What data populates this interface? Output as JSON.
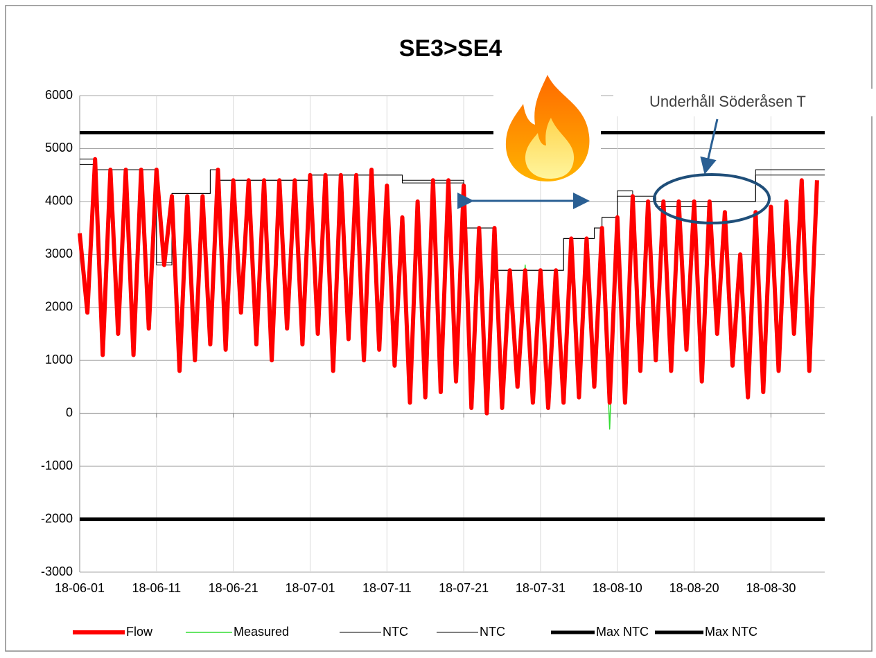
{
  "chart_data": {
    "type": "line",
    "title": "SE3>SE4",
    "annotation": "Underhåll Söderåsen T",
    "x": [
      "18-06-01",
      "18-06-02",
      "18-06-03",
      "18-06-04",
      "18-06-05",
      "18-06-06",
      "18-06-07",
      "18-06-08",
      "18-06-09",
      "18-06-10",
      "18-06-11",
      "18-06-12",
      "18-06-13",
      "18-06-14",
      "18-06-15",
      "18-06-16",
      "18-06-17",
      "18-06-18",
      "18-06-19",
      "18-06-20",
      "18-06-21",
      "18-06-22",
      "18-06-23",
      "18-06-24",
      "18-06-25",
      "18-06-26",
      "18-06-27",
      "18-06-28",
      "18-06-29",
      "18-06-30",
      "18-07-01",
      "18-07-02",
      "18-07-03",
      "18-07-04",
      "18-07-05",
      "18-07-06",
      "18-07-07",
      "18-07-08",
      "18-07-09",
      "18-07-10",
      "18-07-11",
      "18-07-12",
      "18-07-13",
      "18-07-14",
      "18-07-15",
      "18-07-16",
      "18-07-17",
      "18-07-18",
      "18-07-19",
      "18-07-20",
      "18-07-21",
      "18-07-22",
      "18-07-23",
      "18-07-24",
      "18-07-25",
      "18-07-26",
      "18-07-27",
      "18-07-28",
      "18-07-29",
      "18-07-30",
      "18-07-31",
      "18-08-01",
      "18-08-02",
      "18-08-03",
      "18-08-04",
      "18-08-05",
      "18-08-06",
      "18-08-07",
      "18-08-08",
      "18-08-09",
      "18-08-10",
      "18-08-11",
      "18-08-12",
      "18-08-13",
      "18-08-14",
      "18-08-15",
      "18-08-16",
      "18-08-17",
      "18-08-18",
      "18-08-19",
      "18-08-20",
      "18-08-21",
      "18-08-22",
      "18-08-23",
      "18-08-24",
      "18-08-25",
      "18-08-26",
      "18-08-27",
      "18-08-28",
      "18-08-29",
      "18-08-30",
      "18-08-31",
      "18-09-01",
      "18-09-02",
      "18-09-03",
      "18-09-04",
      "18-09-05"
    ],
    "series": [
      {
        "name": "Flow",
        "color": "#ff0000",
        "width": 6,
        "values": [
          3400,
          1900,
          4800,
          1100,
          4600,
          1500,
          4600,
          1100,
          4600,
          1600,
          4600,
          2800,
          4100,
          800,
          4100,
          1000,
          4100,
          1300,
          4600,
          1200,
          4400,
          1900,
          4400,
          1300,
          4400,
          1000,
          4400,
          1600,
          4400,
          1300,
          4500,
          1500,
          4500,
          800,
          4500,
          1400,
          4500,
          1000,
          4600,
          1200,
          4300,
          900,
          3700,
          200,
          4000,
          300,
          4400,
          400,
          4400,
          600,
          4300,
          100,
          3500,
          0,
          3500,
          100,
          2700,
          500,
          2700,
          200,
          2700,
          100,
          2700,
          200,
          3300,
          300,
          3300,
          500,
          3500,
          200,
          3700,
          200,
          4100,
          800,
          4000,
          1000,
          4000,
          800,
          4000,
          1200,
          4000,
          600,
          4000,
          1500,
          3800,
          900,
          3000,
          300,
          3800,
          400,
          3900,
          800,
          4000,
          1500,
          4400,
          800,
          4400
        ]
      },
      {
        "name": "Measured",
        "color": "#33dd33",
        "width": 1.5,
        "values": [
          3200,
          2100,
          4500,
          1300,
          4400,
          1700,
          4400,
          1300,
          4400,
          1800,
          4300,
          2900,
          3900,
          1000,
          3900,
          1200,
          3900,
          1500,
          4400,
          1400,
          4200,
          2000,
          4300,
          1500,
          4200,
          1200,
          4200,
          1800,
          4200,
          1500,
          4300,
          1600,
          4300,
          1000,
          4300,
          1500,
          4300,
          1200,
          4400,
          1400,
          4100,
          1000,
          3500,
          400,
          3800,
          500,
          4200,
          500,
          4200,
          800,
          4100,
          300,
          3300,
          200,
          3300,
          300,
          2600,
          600,
          2800,
          300,
          2600,
          200,
          2600,
          300,
          3100,
          500,
          3100,
          600,
          3300,
          -300,
          3500,
          400,
          3900,
          1000,
          3800,
          1100,
          3800,
          1000,
          3800,
          1300,
          3800,
          800,
          3800,
          1600,
          3600,
          1000,
          2900,
          400,
          3600,
          600,
          3700,
          900,
          3800,
          1600,
          4200,
          1000,
          4200
        ]
      },
      {
        "name": "NTC",
        "color": "#000000",
        "width": 1,
        "x": [
          "18-06-01",
          "18-06-03",
          "18-06-03",
          "18-06-11",
          "18-06-11",
          "18-06-13",
          "18-06-13",
          "18-06-18",
          "18-06-18",
          "18-06-19",
          "18-06-19",
          "18-07-01",
          "18-07-01",
          "18-07-13",
          "18-07-13",
          "18-07-21",
          "18-07-21",
          "18-07-25",
          "18-07-25",
          "18-08-03",
          "18-08-03",
          "18-08-07",
          "18-08-07",
          "18-08-08",
          "18-08-08",
          "18-08-10",
          "18-08-10",
          "18-08-12",
          "18-08-12",
          "18-08-28",
          "18-08-28",
          "18-09-06"
        ],
        "values": [
          4800,
          4800,
          4600,
          4600,
          2850,
          2850,
          4150,
          4150,
          4600,
          4600,
          4400,
          4400,
          4500,
          4500,
          4400,
          4400,
          3500,
          3500,
          2700,
          2700,
          3300,
          3300,
          3500,
          3500,
          3700,
          3700,
          4200,
          4200,
          4000,
          4000,
          4600,
          4600
        ]
      },
      {
        "name": "NTC",
        "color": "#000000",
        "width": 1,
        "x": [
          "18-06-01",
          "18-06-03",
          "18-06-03",
          "18-06-11",
          "18-06-11",
          "18-06-13",
          "18-06-13",
          "18-06-18",
          "18-06-18",
          "18-06-19",
          "18-06-19",
          "18-07-01",
          "18-07-01",
          "18-07-13",
          "18-07-13",
          "18-07-21",
          "18-07-21",
          "18-07-25",
          "18-07-25",
          "18-08-03",
          "18-08-03",
          "18-08-07",
          "18-08-07",
          "18-08-08",
          "18-08-08",
          "18-08-10",
          "18-08-10",
          "18-08-15",
          "18-08-15",
          "18-08-22",
          "18-08-22",
          "18-08-28",
          "18-08-28",
          "18-09-06"
        ],
        "values": [
          4700,
          4700,
          4600,
          4600,
          2800,
          2800,
          4150,
          4150,
          4600,
          4600,
          4400,
          4400,
          4500,
          4500,
          4350,
          4350,
          3500,
          3500,
          2700,
          2700,
          3300,
          3300,
          3500,
          3500,
          3700,
          3700,
          4100,
          4100,
          3900,
          3900,
          4000,
          4000,
          4500,
          4500
        ]
      },
      {
        "name": "Max NTC",
        "color": "#000000",
        "width": 5,
        "x": [
          "18-06-01",
          "18-09-06"
        ],
        "values": [
          5300,
          5300
        ]
      },
      {
        "name": "Max NTC",
        "color": "#000000",
        "width": 5,
        "x": [
          "18-06-01",
          "18-09-06"
        ],
        "values": [
          -2000,
          -2000
        ]
      }
    ],
    "xlim": [
      "18-06-01",
      "18-09-06"
    ],
    "xticks": [
      "18-06-01",
      "18-06-11",
      "18-06-21",
      "18-07-01",
      "18-07-11",
      "18-07-21",
      "18-07-31",
      "18-08-10",
      "18-08-20",
      "18-08-30"
    ],
    "ylim": [
      -3000,
      6000
    ],
    "yticks": [
      -3000,
      -2000,
      -1000,
      0,
      1000,
      2000,
      3000,
      4000,
      5000,
      6000
    ],
    "grid": true,
    "legend": "bottom"
  }
}
